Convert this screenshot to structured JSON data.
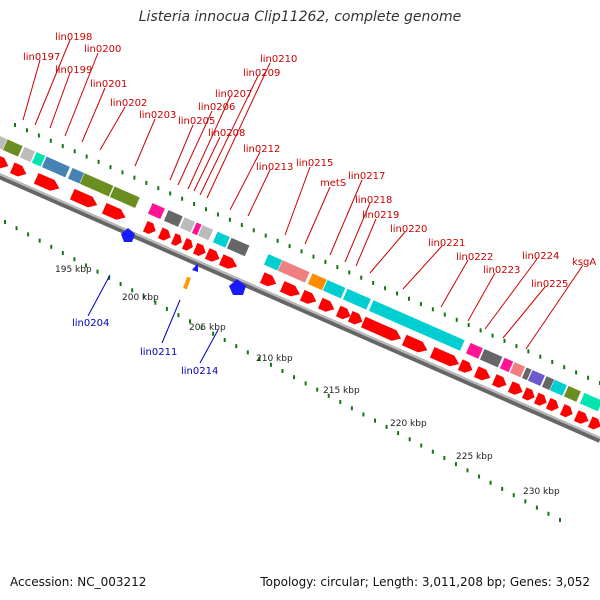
{
  "title": "Listeria innocua Clip11262, complete genome",
  "footer": {
    "accession": "Accession: NC_003212",
    "summary": "Topology: circular; Length: 3,011,208 bp; Genes: 3,052"
  },
  "colors": {
    "cds": "#ff0000",
    "label_forward": "#cc0000",
    "label_reverse": "#0000bb",
    "tick": "#117711",
    "backbone": "#999999"
  },
  "scale_labels": [
    "195 kbp",
    "200 kbp",
    "205 kbp",
    "210 kbp",
    "215 kbp",
    "220 kbp",
    "225 kbp",
    "230 kbp"
  ],
  "forward_gene_labels": [
    "lin0197",
    "lin0198",
    "lin0199",
    "lin0200",
    "lin0201",
    "lin0202",
    "lin0203",
    "lin0205",
    "lin0206",
    "lin0207",
    "lin0208",
    "lin0209",
    "lin0210",
    "lin0212",
    "lin0213",
    "lin0215",
    "metS",
    "lin0217",
    "lin0218",
    "lin0219",
    "lin0220",
    "lin0221",
    "lin0222",
    "lin0223",
    "lin0224",
    "lin0225",
    "ksgA"
  ],
  "reverse_gene_labels": [
    "lin0204",
    "lin0211",
    "lin0214"
  ]
}
